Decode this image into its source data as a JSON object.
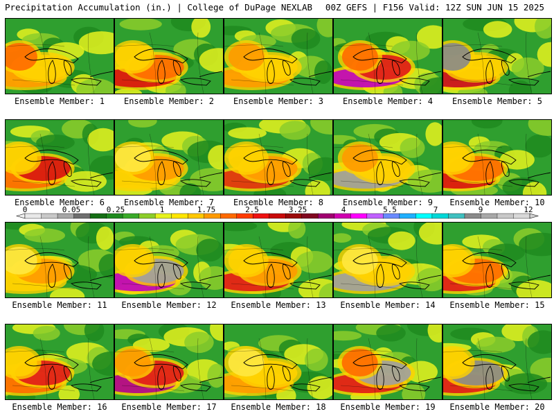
{
  "header": {
    "title_left": "Precipitation Accumulation (in.) | College of DuPage NEXLAB",
    "title_right": "00Z GEFS | F156 Valid: 12Z SUN JUN 15 2025"
  },
  "members": [
    {
      "label": "Ensemble Member: 1",
      "blobs": [
        {
          "c": "#ff9a00",
          "s": 1
        },
        {
          "c": "#ffd200",
          "s": 2
        },
        {
          "c": "#ff6a00",
          "s": 3
        }
      ]
    },
    {
      "label": "Ensemble Member: 2",
      "blobs": [
        {
          "c": "#d81010",
          "s": 1
        },
        {
          "c": "#ff6a00",
          "s": 2
        },
        {
          "c": "#ffd200",
          "s": 3
        }
      ]
    },
    {
      "label": "Ensemble Member: 3",
      "blobs": [
        {
          "c": "#ff9a00",
          "s": 1
        },
        {
          "c": "#ffd200",
          "s": 2
        },
        {
          "c": "#ff9a00",
          "s": 3
        }
      ]
    },
    {
      "label": "Ensemble Member: 4",
      "blobs": [
        {
          "c": "#c000c0",
          "s": 1
        },
        {
          "c": "#e01818",
          "s": 2
        },
        {
          "c": "#ff6a00",
          "s": 3
        }
      ]
    },
    {
      "label": "Ensemble Member: 5",
      "blobs": [
        {
          "c": "#c80a20",
          "s": 1
        },
        {
          "c": "#ffd200",
          "s": 2
        },
        {
          "c": "#8a8a8a",
          "s": 3
        }
      ]
    },
    {
      "label": "Ensemble Member: 6",
      "blobs": [
        {
          "c": "#ff6a00",
          "s": 1
        },
        {
          "c": "#d81010",
          "s": 2
        },
        {
          "c": "#ffd200",
          "s": 3
        }
      ]
    },
    {
      "label": "Ensemble Member: 7",
      "blobs": [
        {
          "c": "#ffd200",
          "s": 1
        },
        {
          "c": "#ff9a00",
          "s": 2
        },
        {
          "c": "#ffe840",
          "s": 3
        }
      ]
    },
    {
      "label": "Ensemble Member: 8",
      "blobs": [
        {
          "c": "#e03010",
          "s": 1
        },
        {
          "c": "#ff9a00",
          "s": 2
        },
        {
          "c": "#ffd200",
          "s": 3
        }
      ]
    },
    {
      "label": "Ensemble Member: 9",
      "blobs": [
        {
          "c": "#a0a0a0",
          "s": 1
        },
        {
          "c": "#ffd200",
          "s": 2
        },
        {
          "c": "#ff9a00",
          "s": 3
        }
      ]
    },
    {
      "label": "Ensemble Member: 10",
      "blobs": [
        {
          "c": "#d81010",
          "s": 1
        },
        {
          "c": "#ff6a00",
          "s": 2
        },
        {
          "c": "#ffd200",
          "s": 3
        }
      ]
    },
    {
      "label": "Ensemble Member: 11",
      "blobs": [
        {
          "c": "#ffd200",
          "s": 1
        },
        {
          "c": "#ff9a00",
          "s": 2
        },
        {
          "c": "#ffe840",
          "s": 3
        }
      ]
    },
    {
      "label": "Ensemble Member: 12",
      "blobs": [
        {
          "c": "#c000c0",
          "s": 1
        },
        {
          "c": "#a0a0a0",
          "s": 2
        },
        {
          "c": "#ffd200",
          "s": 3
        }
      ]
    },
    {
      "label": "Ensemble Member: 13",
      "blobs": [
        {
          "c": "#e01818",
          "s": 1
        },
        {
          "c": "#ff9a00",
          "s": 2
        },
        {
          "c": "#ffd200",
          "s": 3
        }
      ]
    },
    {
      "label": "Ensemble Member: 14",
      "blobs": [
        {
          "c": "#a0a0a0",
          "s": 1
        },
        {
          "c": "#ffd200",
          "s": 2
        },
        {
          "c": "#ffe840",
          "s": 3
        }
      ]
    },
    {
      "label": "Ensemble Member: 15",
      "blobs": [
        {
          "c": "#e01818",
          "s": 1
        },
        {
          "c": "#ff6a00",
          "s": 2
        },
        {
          "c": "#ffd200",
          "s": 3
        }
      ]
    },
    {
      "label": "Ensemble Member: 16",
      "blobs": [
        {
          "c": "#ff6a00",
          "s": 1
        },
        {
          "c": "#e01818",
          "s": 2
        },
        {
          "c": "#ffd200",
          "s": 3
        }
      ]
    },
    {
      "label": "Ensemble Member: 17",
      "blobs": [
        {
          "c": "#b00090",
          "s": 1
        },
        {
          "c": "#e01818",
          "s": 2
        },
        {
          "c": "#ff9a00",
          "s": 3
        }
      ]
    },
    {
      "label": "Ensemble Member: 18",
      "blobs": [
        {
          "c": "#ff9a00",
          "s": 1
        },
        {
          "c": "#ffd200",
          "s": 2
        },
        {
          "c": "#ffe840",
          "s": 3
        }
      ]
    },
    {
      "label": "Ensemble Member: 19",
      "blobs": [
        {
          "c": "#e01818",
          "s": 1
        },
        {
          "c": "#a0a0a0",
          "s": 2
        },
        {
          "c": "#ff6a00",
          "s": 3
        }
      ]
    },
    {
      "label": "Ensemble Member: 20",
      "blobs": [
        {
          "c": "#e01818",
          "s": 1
        },
        {
          "c": "#8a8a8a",
          "s": 2
        },
        {
          "c": "#ffd200",
          "s": 3
        }
      ]
    }
  ],
  "colorbar": {
    "colors": [
      "#e8e8e8",
      "#c8c8c8",
      "#a6a6a6",
      "#6e6e6e",
      "#156e15",
      "#1f8a1f",
      "#3aaa2a",
      "#8ccd2a",
      "#e6f21e",
      "#ffe600",
      "#ffc800",
      "#ff9a00",
      "#ff6a00",
      "#ff3c00",
      "#ee1111",
      "#c80a0a",
      "#9a0a0a",
      "#800820",
      "#a00070",
      "#d000b0",
      "#ff00ff",
      "#c060ff",
      "#6a8aff",
      "#20b0ff",
      "#00ffff",
      "#00d8d8",
      "#40c0c0",
      "#8a8a8a",
      "#a8a8a8",
      "#c8c8c8",
      "#d8d8d8"
    ],
    "labels": [
      "0",
      "0.05",
      "0.25",
      "1",
      "1.75",
      "2.5",
      "3.25",
      "4",
      "5.5",
      "7",
      "9",
      "12"
    ]
  }
}
